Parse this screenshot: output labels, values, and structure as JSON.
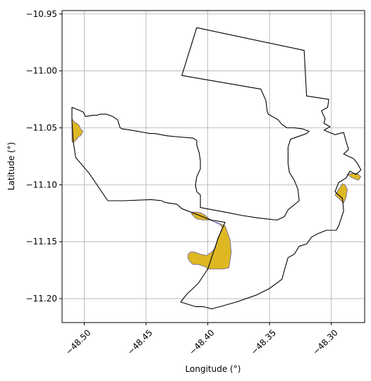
{
  "chart_data": {
    "type": "map",
    "xlabel": "Longitude (°)",
    "ylabel": "Latitude (°)",
    "xlim": [
      -48.518,
      -48.273
    ],
    "ylim": [
      -11.221,
      -10.947
    ],
    "x_ticks": [
      {
        "value": -48.5,
        "label": "−48.50"
      },
      {
        "value": -48.45,
        "label": "−48.45"
      },
      {
        "value": -48.4,
        "label": "−48.40"
      },
      {
        "value": -48.35,
        "label": "−48.35"
      },
      {
        "value": -48.3,
        "label": "−48.30"
      }
    ],
    "y_ticks": [
      {
        "value": -10.95,
        "label": "−10.95"
      },
      {
        "value": -11.0,
        "label": "−11.00"
      },
      {
        "value": -11.05,
        "label": "−11.05"
      },
      {
        "value": -11.1,
        "label": "−11.10"
      },
      {
        "value": -11.15,
        "label": "−11.15"
      },
      {
        "value": -11.2,
        "label": "−11.20"
      }
    ],
    "grid": true,
    "colors": {
      "boundary_stroke": "#000000",
      "area_fill": "#ddb823",
      "area_stroke": "#6f5fa3",
      "grid": "#b0b0b0"
    },
    "boundary": {
      "name": "",
      "coords": [
        [
          -48.409,
          -10.962
        ],
        [
          -48.322,
          -10.982
        ],
        [
          -48.32,
          -11.022
        ],
        [
          -48.302,
          -11.025
        ],
        [
          -48.303,
          -11.032
        ],
        [
          -48.308,
          -11.035
        ],
        [
          -48.305,
          -11.042
        ],
        [
          -48.306,
          -11.046
        ],
        [
          -48.301,
          -11.049
        ],
        [
          -48.306,
          -11.052
        ],
        [
          -48.297,
          -11.056
        ],
        [
          -48.29,
          -11.054
        ],
        [
          -48.288,
          -11.062
        ],
        [
          -48.286,
          -11.069
        ],
        [
          -48.29,
          -11.073
        ],
        [
          -48.282,
          -11.077
        ],
        [
          -48.279,
          -11.081
        ],
        [
          -48.276,
          -11.087
        ],
        [
          -48.28,
          -11.091
        ],
        [
          -48.285,
          -11.088
        ],
        [
          -48.288,
          -11.094
        ],
        [
          -48.294,
          -11.098
        ],
        [
          -48.297,
          -11.106
        ],
        [
          -48.291,
          -11.112
        ],
        [
          -48.29,
          -11.123
        ],
        [
          -48.294,
          -11.136
        ],
        [
          -48.296,
          -11.14
        ],
        [
          -48.304,
          -11.14
        ],
        [
          -48.311,
          -11.143
        ],
        [
          -48.316,
          -11.146
        ],
        [
          -48.32,
          -11.152
        ],
        [
          -48.326,
          -11.154
        ],
        [
          -48.33,
          -11.161
        ],
        [
          -48.335,
          -11.164
        ],
        [
          -48.338,
          -11.175
        ],
        [
          -48.34,
          -11.183
        ],
        [
          -48.35,
          -11.191
        ],
        [
          -48.361,
          -11.197
        ],
        [
          -48.377,
          -11.203
        ],
        [
          -48.39,
          -11.207
        ],
        [
          -48.397,
          -11.209
        ],
        [
          -48.4,
          -11.208
        ],
        [
          -48.404,
          -11.207
        ],
        [
          -48.41,
          -11.207
        ],
        [
          -48.422,
          -11.203
        ],
        [
          -48.417,
          -11.196
        ],
        [
          -48.408,
          -11.187
        ],
        [
          -48.4,
          -11.174
        ],
        [
          -48.396,
          -11.161
        ],
        [
          -48.392,
          -11.148
        ],
        [
          -48.389,
          -11.14
        ],
        [
          -48.386,
          -11.133
        ],
        [
          -48.397,
          -11.131
        ],
        [
          -48.402,
          -11.129
        ],
        [
          -48.409,
          -11.126
        ],
        [
          -48.421,
          -11.121
        ],
        [
          -48.425,
          -11.117
        ],
        [
          -48.432,
          -11.116
        ],
        [
          -48.436,
          -11.115
        ],
        [
          -48.437,
          -11.114
        ],
        [
          -48.446,
          -11.113
        ],
        [
          -48.468,
          -11.114
        ],
        [
          -48.481,
          -11.114
        ],
        [
          -48.496,
          -11.09
        ],
        [
          -48.507,
          -11.076
        ],
        [
          -48.509,
          -11.062
        ],
        [
          -48.51,
          -11.044
        ],
        [
          -48.51,
          -11.032
        ],
        [
          -48.501,
          -11.036
        ],
        [
          -48.499,
          -11.04
        ],
        [
          -48.493,
          -11.039
        ],
        [
          -48.49,
          -11.039
        ],
        [
          -48.487,
          -11.038
        ],
        [
          -48.482,
          -11.038
        ],
        [
          -48.477,
          -11.04
        ],
        [
          -48.473,
          -11.043
        ],
        [
          -48.471,
          -11.05
        ],
        [
          -48.469,
          -11.051
        ],
        [
          -48.462,
          -11.052
        ],
        [
          -48.457,
          -11.053
        ],
        [
          -48.452,
          -11.054
        ],
        [
          -48.447,
          -11.055
        ],
        [
          -48.443,
          -11.055
        ],
        [
          -48.433,
          -11.057
        ],
        [
          -48.423,
          -11.058
        ],
        [
          -48.412,
          -11.059
        ],
        [
          -48.409,
          -11.061
        ],
        [
          -48.409,
          -11.065
        ],
        [
          -48.407,
          -11.072
        ],
        [
          -48.406,
          -11.079
        ],
        [
          -48.406,
          -11.086
        ],
        [
          -48.409,
          -11.093
        ],
        [
          -48.41,
          -11.1
        ],
        [
          -48.409,
          -11.106
        ],
        [
          -48.406,
          -11.109
        ],
        [
          -48.406,
          -11.112
        ],
        [
          -48.406,
          -11.12
        ],
        [
          -48.386,
          -11.124
        ],
        [
          -48.372,
          -11.127
        ],
        [
          -48.36,
          -11.129
        ],
        [
          -48.344,
          -11.131
        ],
        [
          -48.338,
          -11.128
        ],
        [
          -48.335,
          -11.122
        ],
        [
          -48.326,
          -11.114
        ],
        [
          -48.327,
          -11.104
        ],
        [
          -48.33,
          -11.096
        ],
        [
          -48.334,
          -11.089
        ],
        [
          -48.335,
          -11.081
        ],
        [
          -48.335,
          -11.074
        ],
        [
          -48.335,
          -11.067
        ],
        [
          -48.333,
          -11.06
        ],
        [
          -48.325,
          -11.057
        ],
        [
          -48.32,
          -11.055
        ],
        [
          -48.318,
          -11.053
        ],
        [
          -48.323,
          -11.051
        ],
        [
          -48.33,
          -11.05
        ],
        [
          -48.336,
          -11.05
        ],
        [
          -48.34,
          -11.047
        ],
        [
          -48.343,
          -11.043
        ],
        [
          -48.351,
          -11.038
        ],
        [
          -48.352,
          -11.035
        ],
        [
          -48.353,
          -11.026
        ],
        [
          -48.357,
          -11.016
        ],
        [
          -48.421,
          -11.004
        ],
        [
          -48.409,
          -10.962
        ]
      ]
    },
    "areas": [
      {
        "name": "",
        "coords": [
          [
            -48.51,
            -11.042
          ],
          [
            -48.508,
            -11.045
          ],
          [
            -48.506,
            -11.046
          ],
          [
            -48.504,
            -11.048
          ],
          [
            -48.503,
            -11.051
          ],
          [
            -48.502,
            -11.052
          ],
          [
            -48.501,
            -11.053
          ],
          [
            -48.502,
            -11.055
          ],
          [
            -48.503,
            -11.057
          ],
          [
            -48.505,
            -11.058
          ],
          [
            -48.506,
            -11.06
          ],
          [
            -48.508,
            -11.062
          ],
          [
            -48.509,
            -11.063
          ],
          [
            -48.51,
            -11.062
          ],
          [
            -48.51,
            -11.042
          ]
        ]
      },
      {
        "name": "",
        "coords": [
          [
            -48.413,
            -11.124
          ],
          [
            -48.408,
            -11.124
          ],
          [
            -48.405,
            -11.125
          ],
          [
            -48.402,
            -11.127
          ],
          [
            -48.398,
            -11.131
          ],
          [
            -48.393,
            -11.133
          ],
          [
            -48.386,
            -11.136
          ],
          [
            -48.382,
            -11.148
          ],
          [
            -48.381,
            -11.159
          ],
          [
            -48.382,
            -11.167
          ],
          [
            -48.383,
            -11.173
          ],
          [
            -48.388,
            -11.174
          ],
          [
            -48.4,
            -11.174
          ],
          [
            -48.402,
            -11.172
          ],
          [
            -48.408,
            -11.17
          ],
          [
            -48.412,
            -11.17
          ],
          [
            -48.414,
            -11.168
          ],
          [
            -48.416,
            -11.165
          ],
          [
            -48.416,
            -11.161
          ],
          [
            -48.414,
            -11.159
          ],
          [
            -48.411,
            -11.159
          ],
          [
            -48.406,
            -11.161
          ],
          [
            -48.401,
            -11.162
          ],
          [
            -48.398,
            -11.16
          ],
          [
            -48.394,
            -11.156
          ],
          [
            -48.393,
            -11.152
          ],
          [
            -48.392,
            -11.147
          ],
          [
            -48.39,
            -11.143
          ],
          [
            -48.388,
            -11.138
          ],
          [
            -48.39,
            -11.135
          ],
          [
            -48.394,
            -11.133
          ],
          [
            -48.398,
            -11.131
          ],
          [
            -48.403,
            -11.131
          ],
          [
            -48.409,
            -11.13
          ],
          [
            -48.413,
            -11.126
          ],
          [
            -48.413,
            -11.124
          ]
        ]
      },
      {
        "name": "",
        "coords": [
          [
            -48.297,
            -11.109
          ],
          [
            -48.291,
            -11.099
          ],
          [
            -48.289,
            -11.1
          ],
          [
            -48.287,
            -11.104
          ],
          [
            -48.288,
            -11.111
          ],
          [
            -48.29,
            -11.116
          ],
          [
            -48.297,
            -11.109
          ]
        ]
      },
      {
        "name": "",
        "coords": [
          [
            -48.287,
            -11.091
          ],
          [
            -48.283,
            -11.094
          ],
          [
            -48.278,
            -11.096
          ],
          [
            -48.276,
            -11.093
          ],
          [
            -48.279,
            -11.09
          ],
          [
            -48.283,
            -11.09
          ],
          [
            -48.287,
            -11.091
          ]
        ]
      }
    ]
  }
}
